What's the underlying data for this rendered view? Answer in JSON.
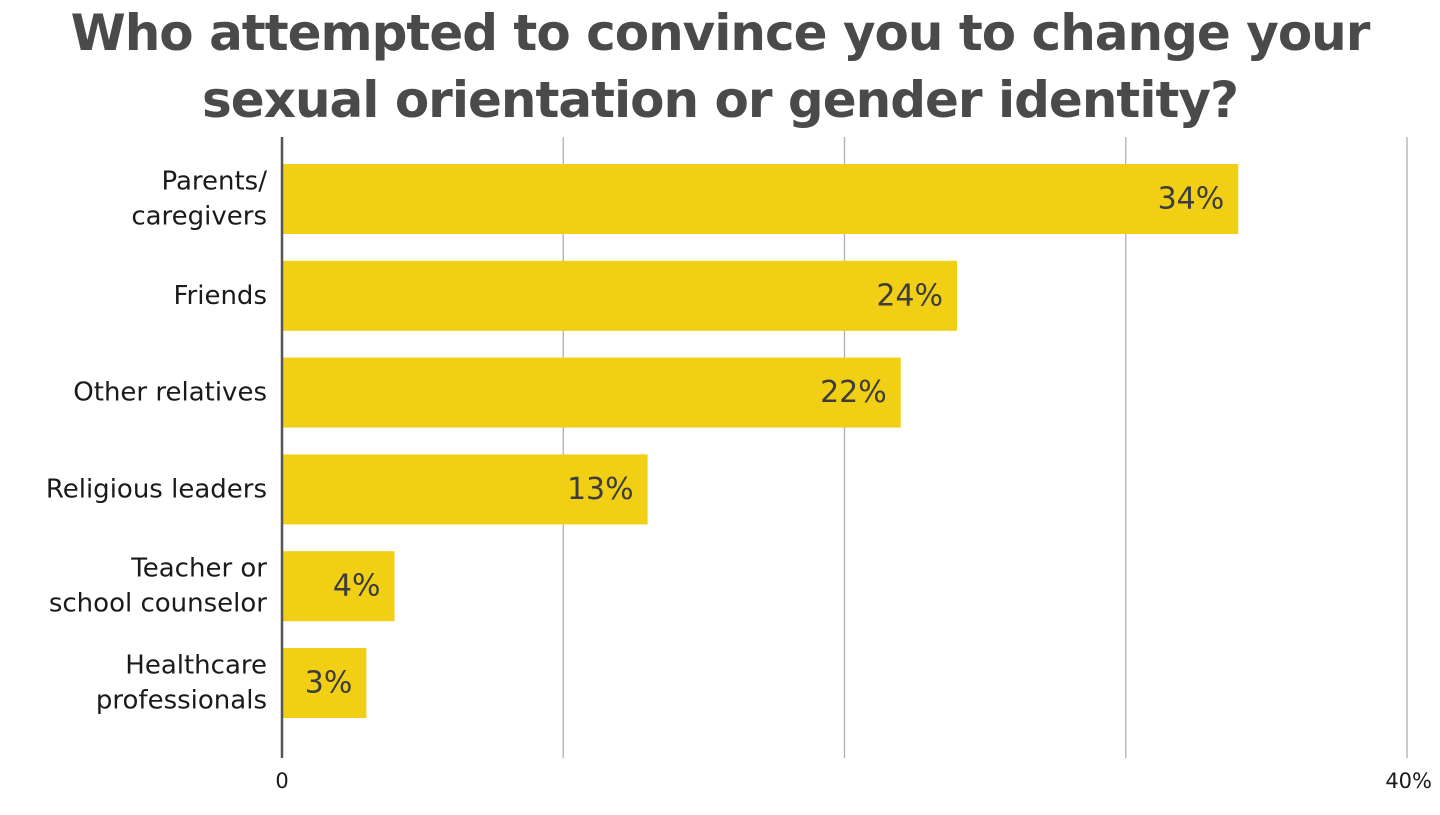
{
  "chart_data": {
    "type": "bar",
    "orientation": "horizontal",
    "title": "Who attempted to convince you to change your sexual orientation or gender identity?",
    "categories": [
      [
        "Parents/",
        "caregivers"
      ],
      [
        "Friends"
      ],
      [
        "Other relatives"
      ],
      [
        "Religious leaders"
      ],
      [
        "Teacher or",
        "school counselor"
      ],
      [
        "Healthcare",
        "professionals"
      ]
    ],
    "values": [
      34,
      24,
      22,
      13,
      4,
      3
    ],
    "value_labels": [
      "34%",
      "24%",
      "22%",
      "13%",
      "4%",
      "3%"
    ],
    "xlim": [
      0,
      40
    ],
    "x_ticks": [
      0,
      10,
      20,
      30,
      40
    ],
    "x_tick_labels": [
      "0",
      "",
      "",
      "",
      "40%"
    ],
    "grid": true,
    "colors": {
      "bar": "#f0cf14",
      "grid": "#b0b0b0",
      "axis": "#555555"
    }
  }
}
